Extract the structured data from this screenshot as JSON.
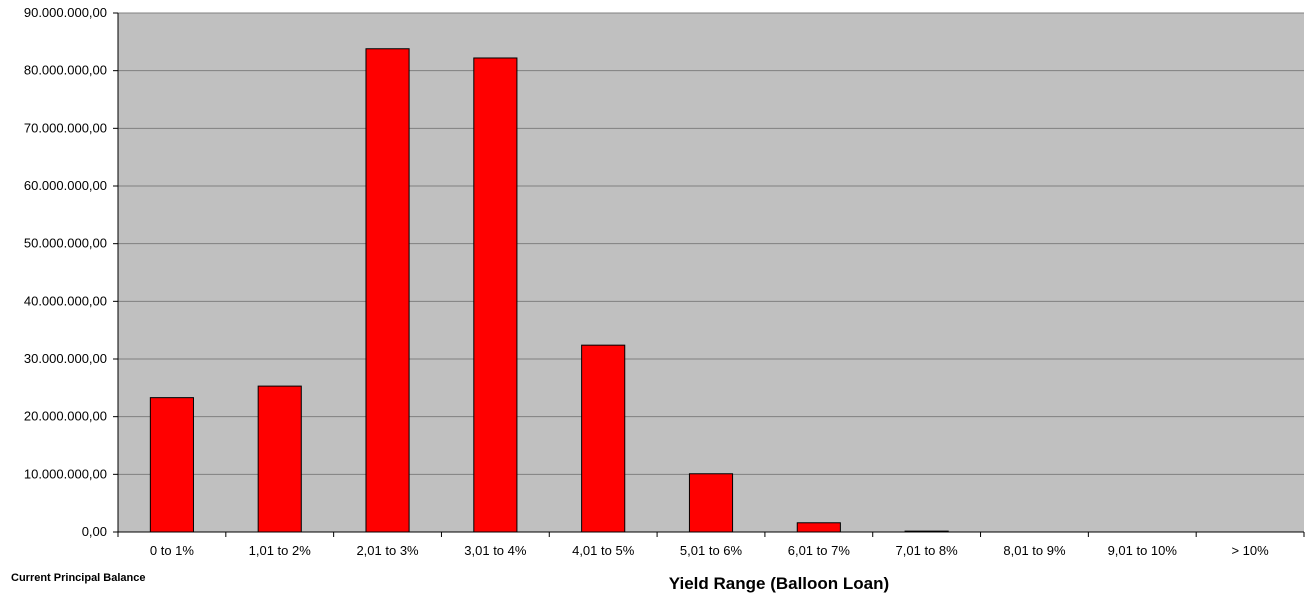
{
  "chart_data": {
    "type": "bar",
    "categories": [
      "0 to 1%",
      "1,01 to 2%",
      "2,01 to 3%",
      "3,01 to 4%",
      "4,01 to 5%",
      "5,01 to 6%",
      "6,01 to 7%",
      "7,01 to 8%",
      "8,01 to 9%",
      "9,01 to 10%",
      "> 10%"
    ],
    "values": [
      23300000,
      25300000,
      83800000,
      82200000,
      32400000,
      10100000,
      1600000,
      150000,
      0,
      0,
      0
    ],
    "yticks": [
      "0,00",
      "10.000.000,00",
      "20.000.000,00",
      "30.000.000,00",
      "40.000.000,00",
      "50.000.000,00",
      "60.000.000,00",
      "70.000.000,00",
      "80.000.000,00",
      "90.000.000,00"
    ],
    "ylim": [
      0,
      90000000
    ],
    "xlabel": "Yield Range (Balloon Loan)",
    "ylabel": "Current Principal  Balance",
    "grid": true,
    "colors": {
      "bar": "#ff0000",
      "plot_background": "#c0c0c0",
      "gridline": "#808080"
    }
  }
}
